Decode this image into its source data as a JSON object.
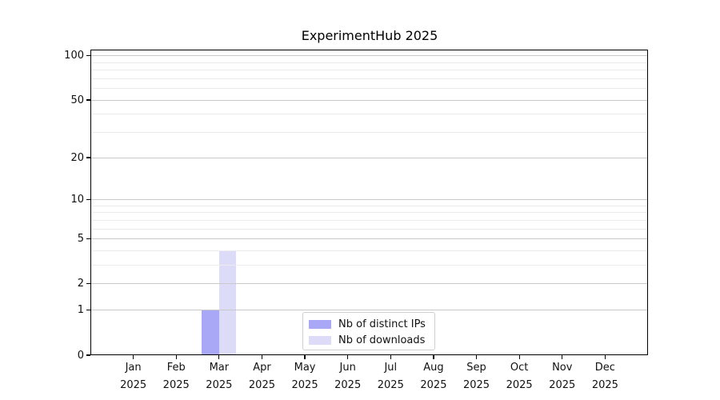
{
  "chart_data": {
    "type": "bar",
    "title": "ExperimentHub 2025",
    "x_axis": {
      "months": [
        "Jan",
        "Feb",
        "Mar",
        "Apr",
        "May",
        "Jun",
        "Jul",
        "Aug",
        "Sep",
        "Oct",
        "Nov",
        "Dec"
      ],
      "year": "2025"
    },
    "y_axis": {
      "scale": "log1p",
      "major_ticks": [
        0,
        1,
        2,
        5,
        10,
        20,
        50,
        100
      ],
      "minor_ticks": [
        3,
        4,
        6,
        7,
        8,
        9,
        30,
        40,
        60,
        70,
        80,
        90
      ],
      "ylim": [
        0,
        110
      ],
      "grid": true
    },
    "series": [
      {
        "name": "Nb of distinct IPs",
        "color": "#a8a8f7",
        "values": [
          0,
          0,
          1,
          0,
          0,
          0,
          0,
          0,
          0,
          0,
          0,
          0
        ]
      },
      {
        "name": "Nb of downloads",
        "color": "#dcdcf8",
        "values": [
          0,
          0,
          4,
          0,
          0,
          0,
          0,
          0,
          0,
          0,
          0,
          0
        ]
      }
    ],
    "legend": {
      "position": "lower center",
      "entries": [
        "Nb of distinct IPs",
        "Nb of downloads"
      ]
    },
    "colors": {
      "spine": "#000000",
      "grid_major": "#c9c9c9",
      "grid_minor": "#ececec",
      "text": "#111111",
      "background": "#ffffff"
    }
  }
}
